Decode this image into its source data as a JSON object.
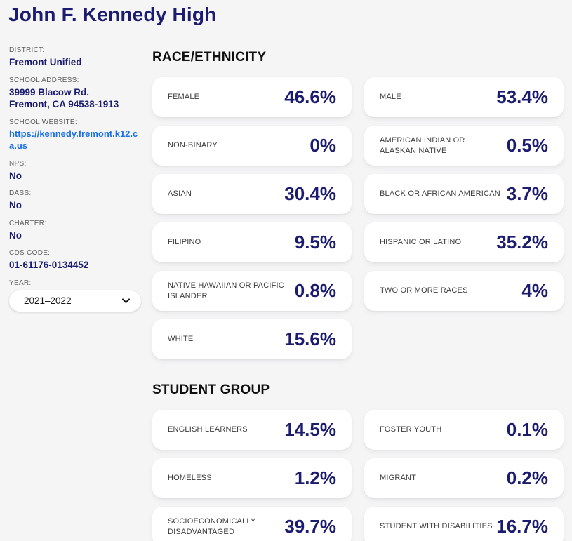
{
  "page": {
    "title": "John F. Kennedy High",
    "colors": {
      "background": "#f5f5f6",
      "navy": "#1b1b6f",
      "link_blue": "#1a70e8",
      "heading_black": "#101010",
      "label_gray": "#5f5f5f"
    }
  },
  "sidebar": {
    "fields": [
      {
        "label": "DISTRICT:",
        "values": [
          "Fremont Unified"
        ]
      },
      {
        "label": "SCHOOL ADDRESS:",
        "values": [
          "39999 Blacow Rd.",
          "Fremont, CA 94538-1913"
        ]
      },
      {
        "label": "SCHOOL WEBSITE:",
        "link": "https://kennedy.fremont.k12.ca.us"
      },
      {
        "label": "NPS:",
        "values": [
          "No"
        ]
      },
      {
        "label": "DASS:",
        "values": [
          "No"
        ]
      },
      {
        "label": "CHARTER:",
        "values": [
          "No"
        ]
      },
      {
        "label": "CDS CODE:",
        "values": [
          "01-61176-0134452"
        ]
      }
    ],
    "year": {
      "label": "YEAR:",
      "selected": "2021–2022",
      "icon": "chevron-down-icon"
    }
  },
  "sections": [
    {
      "heading": "RACE/ETHNICITY",
      "cards": [
        {
          "label": "FEMALE",
          "value": "46.6%"
        },
        {
          "label": "MALE",
          "value": "53.4%"
        },
        {
          "label": "NON-BINARY",
          "value": "0%"
        },
        {
          "label": "AMERICAN INDIAN OR ALASKAN NATIVE",
          "value": "0.5%"
        },
        {
          "label": "ASIAN",
          "value": "30.4%"
        },
        {
          "label": "BLACK OR AFRICAN AMERICAN",
          "value": "3.7%"
        },
        {
          "label": "FILIPINO",
          "value": "9.5%"
        },
        {
          "label": "HISPANIC OR LATINO",
          "value": "35.2%"
        },
        {
          "label": "NATIVE HAWAIIAN OR PACIFIC ISLANDER",
          "value": "0.8%"
        },
        {
          "label": "TWO OR MORE RACES",
          "value": "4%"
        },
        {
          "label": "WHITE",
          "value": "15.6%"
        }
      ]
    },
    {
      "heading": "STUDENT GROUP",
      "cards": [
        {
          "label": "ENGLISH LEARNERS",
          "value": "14.5%"
        },
        {
          "label": "FOSTER YOUTH",
          "value": "0.1%"
        },
        {
          "label": "HOMELESS",
          "value": "1.2%"
        },
        {
          "label": "MIGRANT",
          "value": "0.2%"
        },
        {
          "label": "SOCIOECONOMICALLY DISADVANTAGED",
          "value": "39.7%"
        },
        {
          "label": "STUDENT WITH DISABILITIES",
          "value": "16.7%"
        }
      ]
    }
  ]
}
